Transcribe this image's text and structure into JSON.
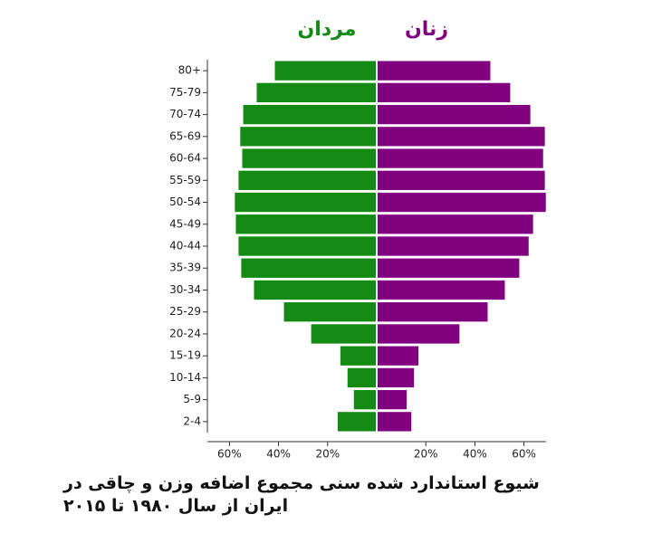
{
  "chart_data": {
    "type": "pyramid",
    "title": "شیوع استاندارد شده سنی مجموع اضافه وزن و چاقی در ایران از سال ۱۹۸۰ تا ۲۰۱۵",
    "categories": [
      "80+",
      "75-79",
      "70-74",
      "65-69",
      "60-64",
      "55-59",
      "50-54",
      "45-49",
      "40-44",
      "35-39",
      "30-34",
      "25-29",
      "20-24",
      "15-19",
      "10-14",
      "5-9",
      "2-4"
    ],
    "series": [
      {
        "name": "مردان",
        "color": "#138a13",
        "side": "left",
        "values": [
          41.5,
          48.9,
          54.4,
          55.6,
          54.8,
          56.3,
          57.8,
          57.4,
          56.3,
          55.2,
          50,
          37.8,
          26.7,
          14.8,
          11.9,
          9.3,
          15.9
        ]
      },
      {
        "name": "زنان",
        "color": "#800080",
        "side": "right",
        "values": [
          46.3,
          54.4,
          62.6,
          68.5,
          67.8,
          68.5,
          68.9,
          63.7,
          61.9,
          58.1,
          52.2,
          45.2,
          33.7,
          17,
          15.2,
          12.2,
          14.1
        ]
      }
    ],
    "xlim": [
      -69,
      69
    ],
    "xticks": [
      {
        "value": -60,
        "label": "60%"
      },
      {
        "value": -40,
        "label": "40%"
      },
      {
        "value": -20,
        "label": "20%"
      },
      {
        "value": 20,
        "label": "20%"
      },
      {
        "value": 40,
        "label": "40%"
      },
      {
        "value": 60,
        "label": "60%"
      }
    ]
  }
}
